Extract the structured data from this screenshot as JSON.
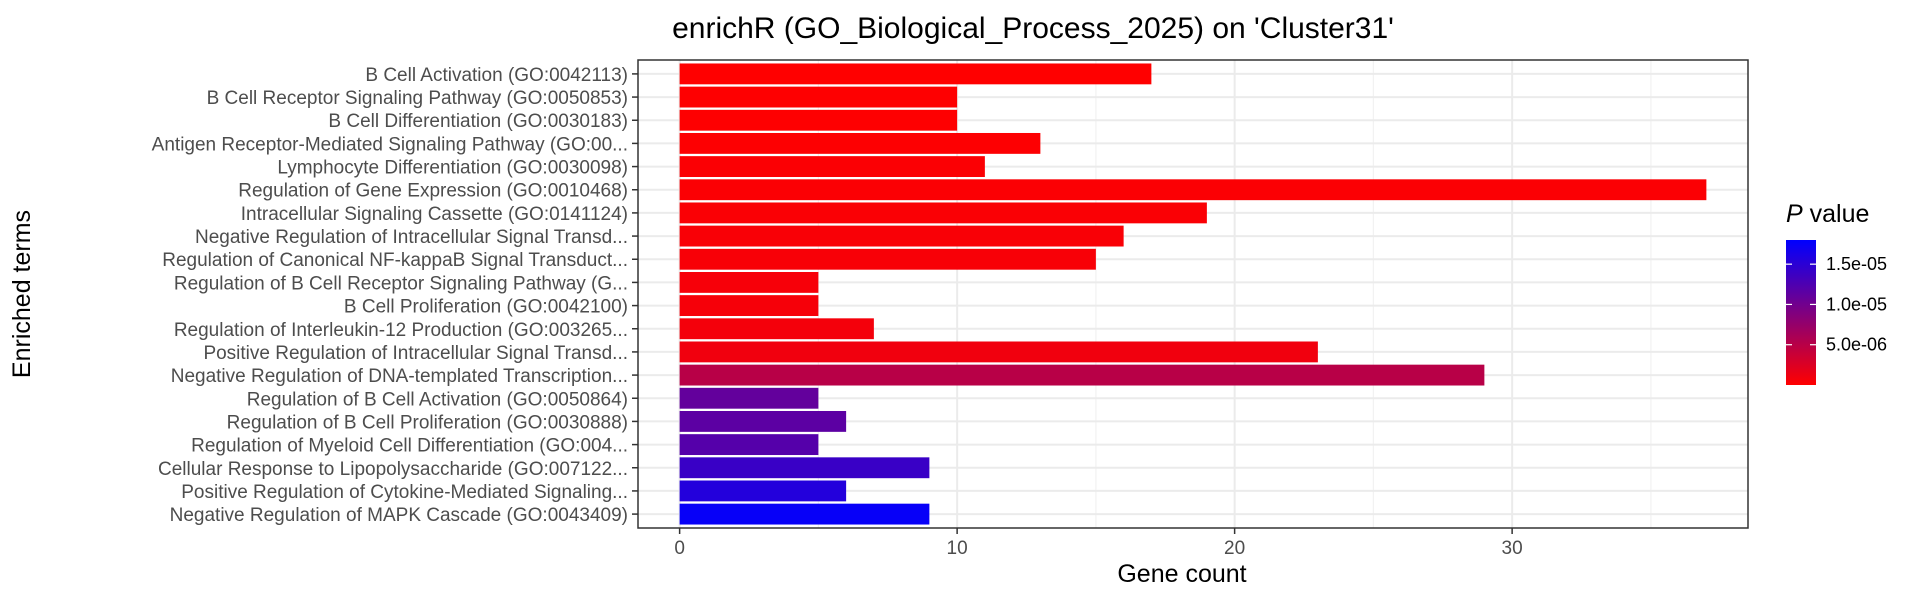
{
  "chart_data": {
    "type": "bar",
    "orientation": "horizontal",
    "title": "enrichR (GO_Biological_Process_2025) on 'Cluster31'",
    "xlabel": "Gene count",
    "ylabel": "Enriched terms",
    "xlim": [
      -1.5,
      38.5
    ],
    "xticks": [
      0,
      10,
      20,
      30
    ],
    "grid": true,
    "categories": [
      "B Cell Activation (GO:0042113)",
      "B Cell Receptor Signaling Pathway (GO:0050853)",
      "B Cell Differentiation (GO:0030183)",
      "Antigen Receptor-Mediated Signaling Pathway (GO:00...",
      "Lymphocyte Differentiation (GO:0030098)",
      "Regulation of Gene Expression (GO:0010468)",
      "Intracellular Signaling Cassette (GO:0141124)",
      "Negative Regulation of Intracellular Signal Transd...",
      "Regulation of Canonical NF-kappaB Signal Transduct...",
      "Regulation of B Cell Receptor Signaling Pathway (G...",
      "B Cell Proliferation (GO:0042100)",
      "Regulation of Interleukin-12 Production (GO:003265...",
      "Positive Regulation of Intracellular Signal Transd...",
      "Negative Regulation of DNA-templated Transcription...",
      "Regulation of B Cell Activation (GO:0050864)",
      "Regulation of B Cell Proliferation (GO:0030888)",
      "Regulation of Myeloid Cell Differentiation (GO:004...",
      "Cellular Response to Lipopolysaccharide (GO:007122...",
      "Positive Regulation of Cytokine-Mediated Signaling...",
      "Negative Regulation of MAPK Cascade (GO:0043409)"
    ],
    "values": [
      17,
      10,
      10,
      13,
      11,
      37,
      19,
      16,
      15,
      5,
      5,
      7,
      23,
      29,
      5,
      6,
      5,
      9,
      6,
      9
    ],
    "p_values": [
      2e-08,
      5e-08,
      1e-07,
      1.5e-07,
      2.5e-07,
      3e-07,
      3.5e-07,
      4e-07,
      5e-07,
      6e-07,
      6.5e-07,
      8e-07,
      1e-06,
      5e-06,
      1.1e-05,
      1.15e-05,
      1.2e-05,
      1.4e-05,
      1.55e-05,
      1.75e-05
    ],
    "legend": {
      "title_italic": "P",
      "title_rest": " value",
      "placement": "right",
      "range": [
        0,
        1.8e-05
      ],
      "ticks": [
        5e-06,
        1e-05,
        1.5e-05
      ],
      "tick_labels": [
        "5.0e-06",
        "1.0e-05",
        "1.5e-05"
      ],
      "color_low": "#ff0000",
      "color_high": "#0000ff"
    }
  }
}
